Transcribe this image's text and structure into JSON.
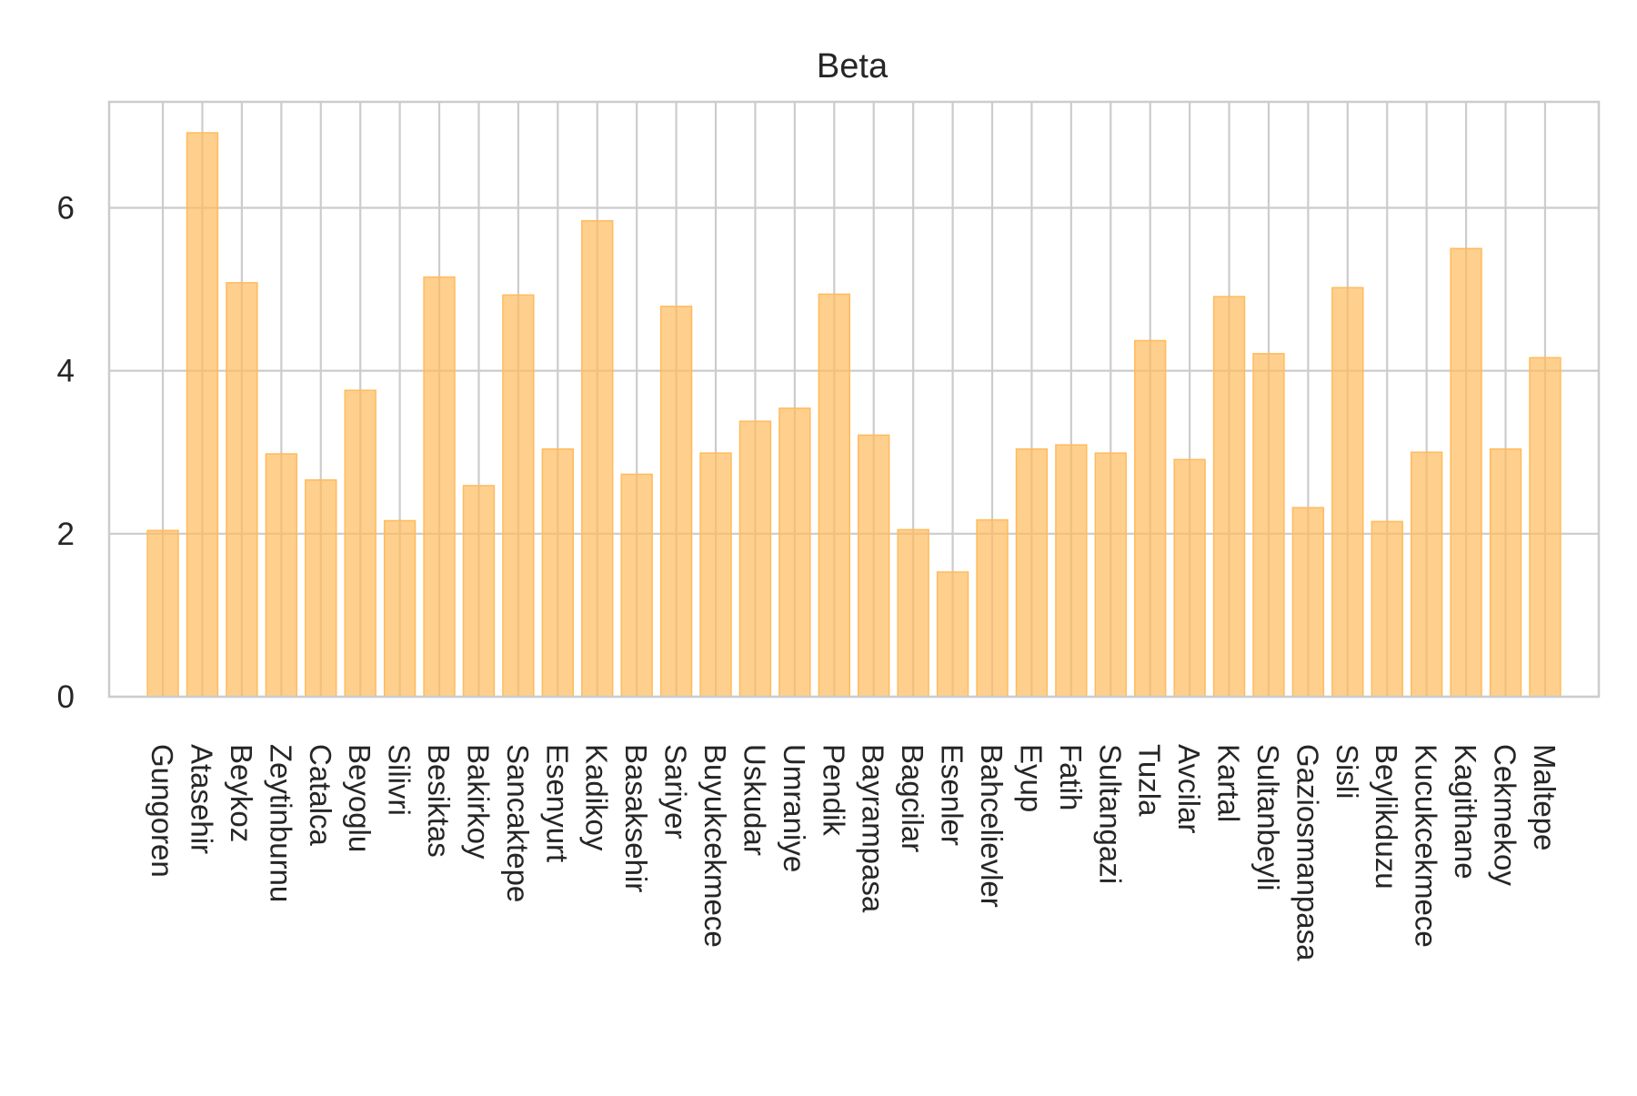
{
  "chart_data": {
    "type": "bar",
    "title": "Beta",
    "xlabel": "",
    "ylabel": "",
    "ylim": [
      0,
      7.3
    ],
    "yticks": [
      0,
      2,
      4,
      6
    ],
    "grid": true,
    "colors": {
      "bar": "#ffbb5c",
      "grid": "#cccccc",
      "spine": "#cccccc"
    },
    "categories": [
      "Gungoren",
      "Atasehir",
      "Beykoz",
      "Zeytinburnu",
      "Catalca",
      "Beyoglu",
      "Silivri",
      "Besiktas",
      "Bakirkoy",
      "Sancaktepe",
      "Esenyurt",
      "Kadikoy",
      "Basaksehir",
      "Sariyer",
      "Buyukcekmece",
      "Uskudar",
      "Umraniye",
      "Pendik",
      "Bayrampasa",
      "Bagcilar",
      "Esenler",
      "Bahcelievler",
      "Eyup",
      "Fatih",
      "Sultangazi",
      "Tuzla",
      "Avcilar",
      "Kartal",
      "Sultanbeyli",
      "Gaziosmanpasa",
      "Sisli",
      "Beylikduzu",
      "Kucukcekmece",
      "Kagithane",
      "Cekmekoy",
      "Maltepe"
    ],
    "values": [
      2.04,
      6.92,
      5.08,
      2.98,
      2.66,
      3.76,
      2.16,
      5.15,
      2.59,
      4.93,
      3.04,
      5.84,
      2.73,
      4.79,
      2.99,
      3.38,
      3.54,
      4.94,
      3.21,
      2.05,
      1.53,
      2.17,
      3.04,
      3.09,
      2.99,
      4.37,
      2.91,
      4.91,
      4.21,
      2.32,
      5.02,
      2.15,
      3.0,
      5.5,
      3.04,
      4.16
    ]
  }
}
